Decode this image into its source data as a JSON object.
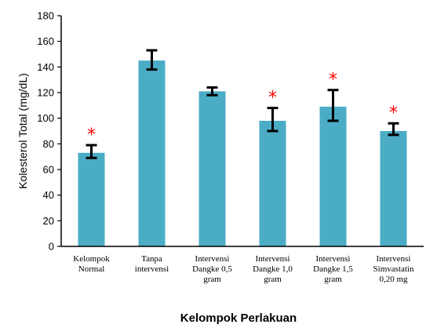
{
  "chart_data": {
    "type": "bar",
    "categories": [
      [
        "Kelompok",
        "Normal"
      ],
      [
        "Tanpa",
        "intervensi"
      ],
      [
        "Intervensi",
        "Dangke 0,5",
        "gram"
      ],
      [
        "Intervensi",
        "Dangke 1,0",
        "gram"
      ],
      [
        "Intervensi",
        "Dangke 1,5",
        "gram"
      ],
      [
        "Intervensi",
        "Simvastatin",
        "0,20 mg"
      ]
    ],
    "values": [
      73,
      145,
      121,
      98,
      109,
      90
    ],
    "error_low": [
      69,
      138,
      118,
      90,
      98,
      87
    ],
    "error_high": [
      79,
      153,
      124,
      108,
      122,
      96
    ],
    "significance": [
      "*",
      "",
      "",
      "*",
      "*",
      "*"
    ],
    "xlabel": "Kelompok Perlakuan",
    "ylabel": "Kolesterol Total (mg/dL)",
    "ylim": [
      0,
      180
    ],
    "yticks": [
      0,
      20,
      40,
      60,
      80,
      100,
      120,
      140,
      160,
      180
    ],
    "bar_color": "#4bacc6",
    "marker_color": "#ff0000",
    "grid": false,
    "legend": "none"
  }
}
